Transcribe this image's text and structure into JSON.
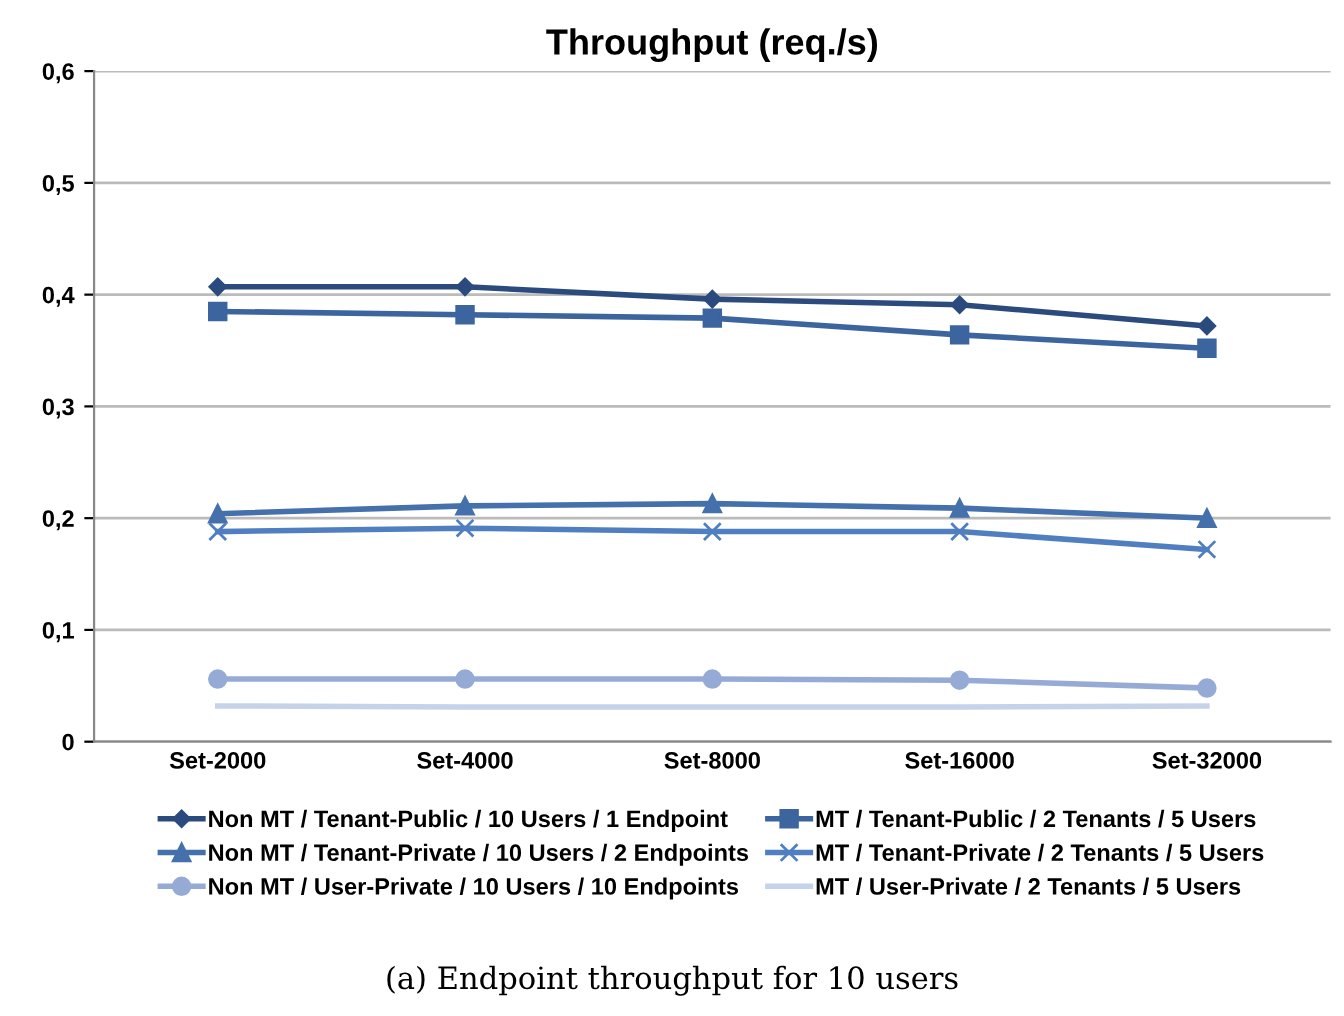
{
  "chart_data": {
    "type": "line",
    "title": "Throughput (req./s)",
    "categories": [
      "Set-2000",
      "Set-4000",
      "Set-8000",
      "Set-16000",
      "Set-32000"
    ],
    "series": [
      {
        "name": "Non MT / Tenant-Public / 10 Users / 1 Endpoint",
        "color": "#2b4a7e",
        "marker": "diamond",
        "values": [
          0.407,
          0.407,
          0.396,
          0.391,
          0.372
        ]
      },
      {
        "name": "MT / Tenant-Public / 2 Tenants / 5 Users",
        "color": "#3c65a0",
        "marker": "square",
        "values": [
          0.385,
          0.382,
          0.379,
          0.364,
          0.352
        ]
      },
      {
        "name": "Non MT / Tenant-Private / 10 Users / 2 Endpoints",
        "color": "#4470ac",
        "marker": "triangle",
        "values": [
          0.204,
          0.211,
          0.213,
          0.209,
          0.2
        ]
      },
      {
        "name": "MT / Tenant-Private / 2 Tenants / 5 Users",
        "color": "#4f7fc0",
        "marker": "cross",
        "values": [
          0.188,
          0.191,
          0.188,
          0.188,
          0.172
        ]
      },
      {
        "name": "Non MT / User-Private / 10 Users / 10 Endpoints",
        "color": "#95abd6",
        "marker": "circle",
        "values": [
          0.056,
          0.056,
          0.056,
          0.055,
          0.048
        ]
      },
      {
        "name": "MT / User-Private / 2 Tenants / 5 Users",
        "color": "#c5d3ea",
        "marker": "none",
        "values": [
          0.032,
          0.031,
          0.031,
          0.031,
          0.032
        ]
      }
    ],
    "ylim": [
      0,
      0.6
    ],
    "yticks": [
      {
        "value": 0,
        "label": "0"
      },
      {
        "value": 0.1,
        "label": "0,1"
      },
      {
        "value": 0.2,
        "label": "0,2"
      },
      {
        "value": 0.3,
        "label": "0,3"
      },
      {
        "value": 0.4,
        "label": "0,4"
      },
      {
        "value": 0.5,
        "label": "0,5"
      },
      {
        "value": 0.6,
        "label": "0,6"
      }
    ],
    "grid": "y",
    "legend": "bottom",
    "annotations": [
      "(a) Endpoint throughput for 10 users"
    ]
  }
}
